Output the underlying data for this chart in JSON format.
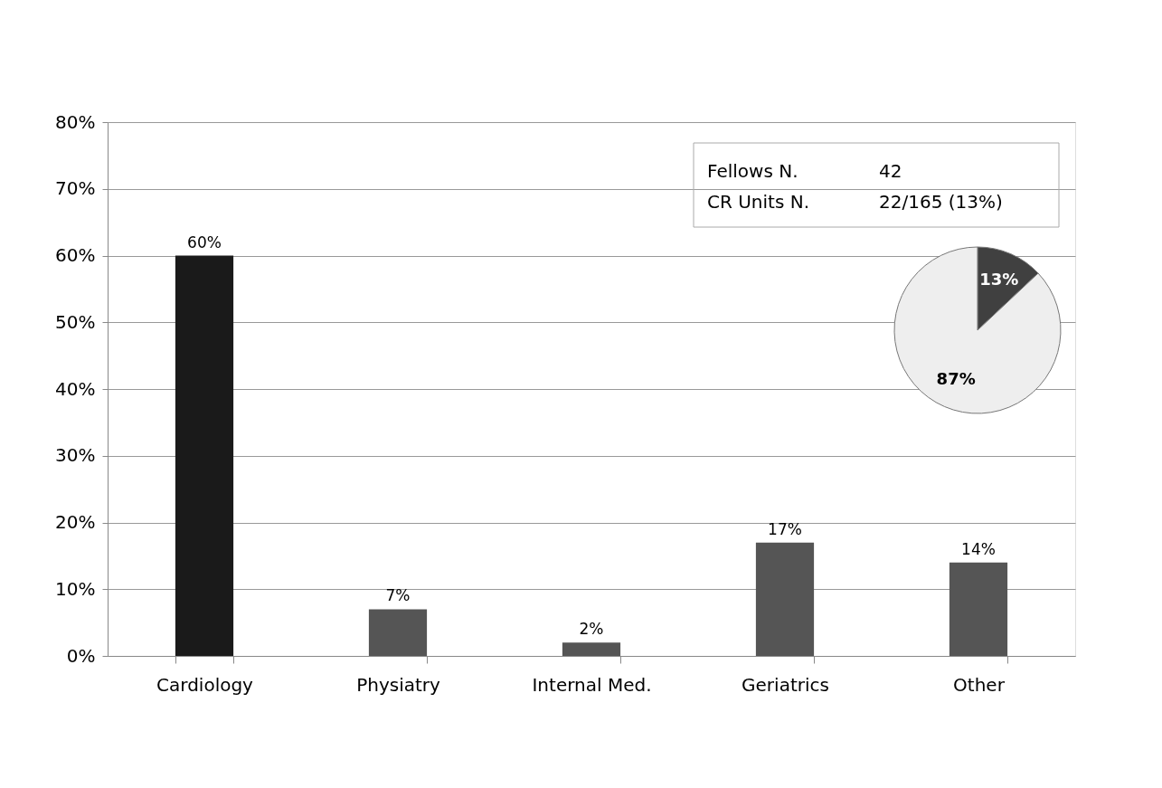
{
  "chart_data": [
    {
      "type": "bar",
      "categories": [
        "Cardiology",
        "Physiatry",
        "Internal Med.",
        "Geriatrics",
        "Other"
      ],
      "values": [
        60,
        7,
        2,
        17,
        14
      ],
      "colors": [
        "#1a1a1a",
        "#555555",
        "#555555",
        "#555555",
        "#555555"
      ],
      "value_labels": [
        "60%",
        "7%",
        "2%",
        "17%",
        "14%"
      ],
      "ylim": [
        0,
        80
      ],
      "yticks": [
        {
          "value": 0,
          "label": "0%"
        },
        {
          "value": 10,
          "label": "10%"
        },
        {
          "value": 20,
          "label": "20%"
        },
        {
          "value": 30,
          "label": "30%"
        },
        {
          "value": 40,
          "label": "40%"
        },
        {
          "value": 50,
          "label": "50%"
        },
        {
          "value": 60,
          "label": "60%"
        },
        {
          "value": 70,
          "label": "70%"
        },
        {
          "value": 80,
          "label": "80%"
        }
      ],
      "grid": "y",
      "annotations": [
        "Fellows N.",
        "42",
        "CR Units N.",
        "22/165 (13%)"
      ]
    },
    {
      "type": "pie",
      "categories": [
        null,
        null
      ],
      "values": [
        13,
        87
      ],
      "colors": [
        "#404040",
        "#eeeeee"
      ],
      "value_labels": [
        "13%",
        "87%"
      ]
    }
  ]
}
